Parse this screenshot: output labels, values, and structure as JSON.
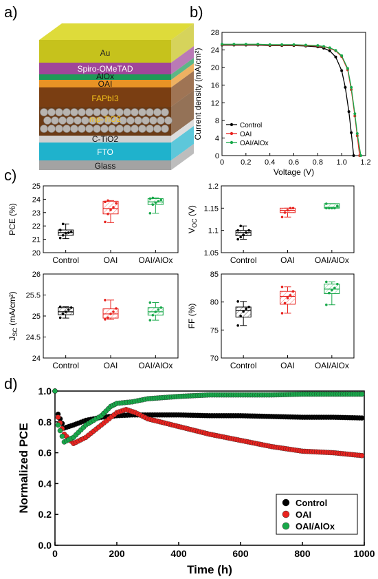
{
  "panels": {
    "a": "a)",
    "b": "b)",
    "c": "c)",
    "d": "d)"
  },
  "colors": {
    "control": "#000000",
    "oai": "#e8231f",
    "oai_alox": "#18a84a"
  },
  "stack_layers": [
    {
      "label": "Au",
      "color": "#c6c21c"
    },
    {
      "label": "Spiro-OMeTAD",
      "color": "#a0469a"
    },
    {
      "label": "AlOx",
      "color": "#1e9a58"
    },
    {
      "label": "OAI",
      "color": "#e89325"
    },
    {
      "label": "FAPbI3",
      "color": "#7a3e12"
    },
    {
      "label": "mp-TiO2",
      "color": "#6b3b16"
    },
    {
      "label": "C-TiO2",
      "color": "#d0d0d0"
    },
    {
      "label": "FTO",
      "color": "#1fb2cc"
    },
    {
      "label": "Glass",
      "color": "#a3a3a3"
    }
  ],
  "chart_data": [
    {
      "id": "b",
      "type": "line",
      "xlabel": "Voltage (V)",
      "ylabel": "Current density (mA/cm²)",
      "xlim": [
        0,
        1.2
      ],
      "ylim": [
        0,
        28
      ],
      "xticks": [
        "0",
        "0.2",
        "0.4",
        "0.6",
        "0.8",
        "1.0",
        "1.2"
      ],
      "yticks": [
        "0",
        "4",
        "8",
        "12",
        "16",
        "20",
        "24",
        "28"
      ],
      "legend_position": "bottom-left",
      "series": [
        {
          "name": "Control",
          "x": [
            0,
            0.1,
            0.2,
            0.3,
            0.4,
            0.5,
            0.6,
            0.7,
            0.8,
            0.85,
            0.9,
            0.95,
            1.0,
            1.03,
            1.06,
            1.08,
            1.1
          ],
          "y": [
            25.1,
            25.1,
            25.1,
            25.1,
            25.0,
            25.0,
            25.0,
            24.9,
            24.7,
            24.4,
            23.8,
            22.4,
            19.3,
            15.5,
            10.0,
            5.2,
            0
          ]
        },
        {
          "name": "OAI",
          "x": [
            0,
            0.1,
            0.2,
            0.3,
            0.4,
            0.5,
            0.6,
            0.7,
            0.8,
            0.85,
            0.9,
            0.95,
            1.0,
            1.05,
            1.08,
            1.11,
            1.13,
            1.15
          ],
          "y": [
            25.2,
            25.2,
            25.2,
            25.2,
            25.1,
            25.1,
            25.1,
            25.0,
            24.9,
            24.7,
            24.4,
            23.8,
            22.5,
            19.5,
            15.0,
            9.0,
            4.5,
            0
          ]
        },
        {
          "name": "OAI/AlOx",
          "x": [
            0,
            0.1,
            0.2,
            0.3,
            0.4,
            0.5,
            0.6,
            0.7,
            0.8,
            0.85,
            0.9,
            0.95,
            1.0,
            1.05,
            1.08,
            1.11,
            1.13,
            1.16
          ],
          "y": [
            25.3,
            25.3,
            25.3,
            25.3,
            25.2,
            25.2,
            25.2,
            25.1,
            25.0,
            24.8,
            24.5,
            23.9,
            22.7,
            19.8,
            15.5,
            9.5,
            5.0,
            0
          ]
        }
      ]
    },
    {
      "id": "c-pce",
      "type": "box",
      "ylabel": "PCE (%)",
      "ylim": [
        20,
        25
      ],
      "yticks": [
        "20",
        "21",
        "22",
        "23",
        "24",
        "25"
      ],
      "categories": [
        "Control",
        "OAI",
        "OAI/AlOx"
      ],
      "boxes": [
        {
          "q1": 21.3,
          "median": 21.5,
          "q3": 21.7,
          "min": 21.05,
          "max": 22.15,
          "points": [
            21.1,
            21.3,
            21.45,
            21.5,
            21.55,
            21.7,
            22.15
          ]
        },
        {
          "q1": 22.9,
          "median": 23.3,
          "q3": 23.85,
          "min": 22.25,
          "max": 23.9,
          "points": [
            22.3,
            22.9,
            23.2,
            23.4,
            23.7,
            23.8,
            23.9
          ]
        },
        {
          "q1": 23.6,
          "median": 23.8,
          "q3": 24.05,
          "min": 22.95,
          "max": 24.1,
          "points": [
            22.95,
            23.6,
            23.75,
            23.85,
            23.95,
            24.05,
            24.1
          ]
        }
      ]
    },
    {
      "id": "c-voc",
      "type": "box",
      "ylabel": "VOC (V)",
      "ylim": [
        1.05,
        1.2
      ],
      "yticks": [
        "1.05",
        "1.1",
        "1.15",
        "1.2"
      ],
      "categories": [
        "Control",
        "OAI",
        "OAI/AlOx"
      ],
      "boxes": [
        {
          "q1": 1.088,
          "median": 1.095,
          "q3": 1.1,
          "min": 1.08,
          "max": 1.11,
          "points": [
            1.08,
            1.085,
            1.09,
            1.095,
            1.1,
            1.1,
            1.11
          ]
        },
        {
          "q1": 1.14,
          "median": 1.145,
          "q3": 1.15,
          "min": 1.13,
          "max": 1.15,
          "points": [
            1.13,
            1.14,
            1.145,
            1.15,
            1.15
          ]
        },
        {
          "q1": 1.15,
          "median": 1.152,
          "q3": 1.16,
          "min": 1.15,
          "max": 1.16,
          "points": [
            1.15,
            1.15,
            1.15,
            1.15,
            1.155,
            1.16
          ]
        }
      ]
    },
    {
      "id": "c-jsc",
      "type": "box",
      "ylabel": "JSC (mA/cm²)",
      "ylim": [
        24,
        26
      ],
      "yticks": [
        "24",
        "24.5",
        "25",
        "25.5",
        "26"
      ],
      "categories": [
        "Control",
        "OAI",
        "OAI/AlOx"
      ],
      "boxes": [
        {
          "q1": 25.03,
          "median": 25.1,
          "q3": 25.2,
          "min": 24.95,
          "max": 25.22,
          "points": [
            24.96,
            25.05,
            25.1,
            25.15,
            25.2,
            25.22
          ]
        },
        {
          "q1": 24.95,
          "median": 25.05,
          "q3": 25.17,
          "min": 24.92,
          "max": 25.38,
          "points": [
            24.92,
            24.96,
            25.05,
            25.1,
            25.18,
            25.38
          ]
        },
        {
          "q1": 25.02,
          "median": 25.1,
          "q3": 25.2,
          "min": 24.9,
          "max": 25.32,
          "points": [
            24.9,
            25.02,
            25.1,
            25.15,
            25.2,
            25.32
          ]
        }
      ]
    },
    {
      "id": "c-ff",
      "type": "box",
      "ylabel": "FF (%)",
      "ylim": [
        70,
        85
      ],
      "yticks": [
        "70",
        "75",
        "80",
        "85"
      ],
      "categories": [
        "Control",
        "OAI",
        "OAI/AlOx"
      ],
      "boxes": [
        {
          "q1": 77.3,
          "median": 78.5,
          "q3": 79.1,
          "min": 75.8,
          "max": 80.1,
          "points": [
            75.8,
            77.5,
            78.3,
            78.8,
            79.1,
            80.1
          ]
        },
        {
          "q1": 79.6,
          "median": 81.0,
          "q3": 81.9,
          "min": 78.0,
          "max": 82.7,
          "points": [
            78.0,
            79.8,
            80.7,
            81.2,
            81.9,
            82.7
          ]
        },
        {
          "q1": 81.5,
          "median": 82.3,
          "q3": 83.2,
          "min": 79.5,
          "max": 83.6,
          "points": [
            79.5,
            81.6,
            82.1,
            82.5,
            83.2,
            83.6
          ]
        }
      ]
    },
    {
      "id": "d",
      "type": "scatter",
      "xlabel": "Time (h)",
      "ylabel": "Normalized PCE",
      "xlim": [
        0,
        1000
      ],
      "ylim": [
        0,
        1.0
      ],
      "xticks": [
        "0",
        "200",
        "400",
        "600",
        "800",
        "1000"
      ],
      "yticks": [
        "0.0",
        "0.2",
        "0.4",
        "0.6",
        "0.8",
        "1.0"
      ],
      "legend_position": "bottom-right",
      "series": [
        {
          "name": "Control",
          "x": [
            0,
            10,
            30,
            60,
            100,
            150,
            200,
            250,
            300,
            400,
            500,
            600,
            700,
            800,
            900,
            1000
          ],
          "y": [
            1.0,
            0.85,
            0.76,
            0.78,
            0.81,
            0.83,
            0.84,
            0.845,
            0.845,
            0.845,
            0.84,
            0.84,
            0.835,
            0.83,
            0.83,
            0.825
          ]
        },
        {
          "name": "OAI",
          "x": [
            0,
            10,
            30,
            60,
            100,
            150,
            200,
            230,
            260,
            300,
            400,
            500,
            600,
            700,
            800,
            900,
            1000
          ],
          "y": [
            1.0,
            0.83,
            0.72,
            0.66,
            0.7,
            0.78,
            0.86,
            0.88,
            0.86,
            0.82,
            0.77,
            0.72,
            0.68,
            0.64,
            0.61,
            0.6,
            0.58
          ]
        },
        {
          "name": "OAI/AlOx",
          "x": [
            0,
            10,
            30,
            60,
            100,
            150,
            180,
            200,
            250,
            300,
            400,
            500,
            600,
            700,
            800,
            900,
            1000
          ],
          "y": [
            1.0,
            0.78,
            0.67,
            0.7,
            0.78,
            0.84,
            0.9,
            0.92,
            0.93,
            0.95,
            0.965,
            0.975,
            0.975,
            0.975,
            0.98,
            0.98,
            0.98
          ]
        }
      ]
    }
  ]
}
